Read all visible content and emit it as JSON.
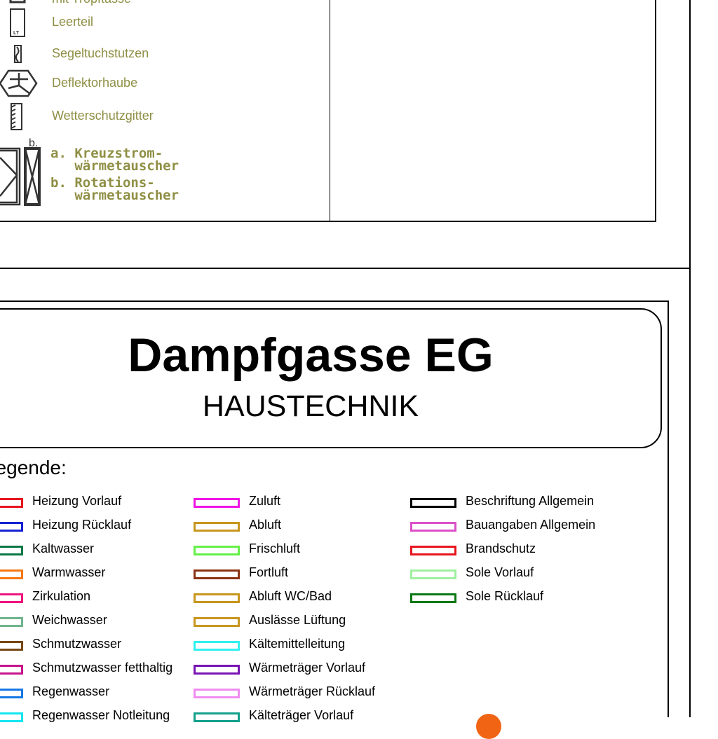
{
  "symbols": {
    "items": [
      {
        "label": "mit Tropftasse",
        "icon": "drip-tray-icon"
      },
      {
        "label": "Leerteil",
        "icon": "empty-part-icon",
        "icon_text": "LT"
      },
      {
        "label": "Segeltuchstutzen",
        "icon": "canvas-connector-icon"
      },
      {
        "label": "Deflektorhaube",
        "icon": "deflector-hood-icon"
      },
      {
        "label": "Wetterschutzgitter",
        "icon": "weather-grille-icon"
      }
    ],
    "heat_exchanger": {
      "marker_b": "b.",
      "lines": [
        "a. Kreuzstrom-",
        "   wärmetauscher",
        "b. Rotations-",
        "   wärmetauscher"
      ]
    }
  },
  "title_block": {
    "title": "Dampfgasse EG",
    "subtitle": "HAUSTECHNIK"
  },
  "legend": {
    "heading": "Legende:",
    "columns": [
      [
        {
          "label": "Heizung Vorlauf",
          "color": "#e8141e"
        },
        {
          "label": "Heizung Rücklauf",
          "color": "#1420d2"
        },
        {
          "label": "Kaltwasser",
          "color": "#0a7846"
        },
        {
          "label": "Warmwasser",
          "color": "#f57814"
        },
        {
          "label": "Zirkulation",
          "color": "#f0147d"
        },
        {
          "label": "Weichwasser",
          "color": "#6eb48c"
        },
        {
          "label": "Schmutzwasser",
          "color": "#784614"
        },
        {
          "label": "Schmutzwasser fetthaltig",
          "color": "#c8148c"
        },
        {
          "label": "Regenwasser",
          "color": "#1478e6"
        },
        {
          "label": "Regenwasser Notleitung",
          "color": "#14e6f0"
        }
      ],
      [
        {
          "label": "Zuluft",
          "color": "#f014e6"
        },
        {
          "label": "Abluft",
          "color": "#c8961e"
        },
        {
          "label": "Frischluft",
          "color": "#64f046"
        },
        {
          "label": "Fortluft",
          "color": "#8c3214"
        },
        {
          "label": "Abluft WC/Bad",
          "color": "#c8961e"
        },
        {
          "label": "Auslässe Lüftung",
          "color": "#c8961e"
        },
        {
          "label": "Kältemittelleitung",
          "color": "#32f0f0"
        },
        {
          "label": "Wärmeträger Vorlauf",
          "color": "#7814b4"
        },
        {
          "label": "Wärmeträger Rücklauf",
          "color": "#f08cf0"
        },
        {
          "label": "Kälteträger Vorlauf",
          "color": "#14a08c"
        }
      ],
      [
        {
          "label": "Beschriftung Allgemein",
          "color": "#000000"
        },
        {
          "label": "Bauangaben Allgemein",
          "color": "#dc50c8"
        },
        {
          "label": "Brandschutz",
          "color": "#e8141e"
        },
        {
          "label": "Sole Vorlauf",
          "color": "#a0f0a0"
        },
        {
          "label": "Sole Rücklauf",
          "color": "#0a7814"
        }
      ]
    ]
  },
  "colors": {
    "symbol_text": "#8f8f45",
    "marker": "#f06414"
  }
}
